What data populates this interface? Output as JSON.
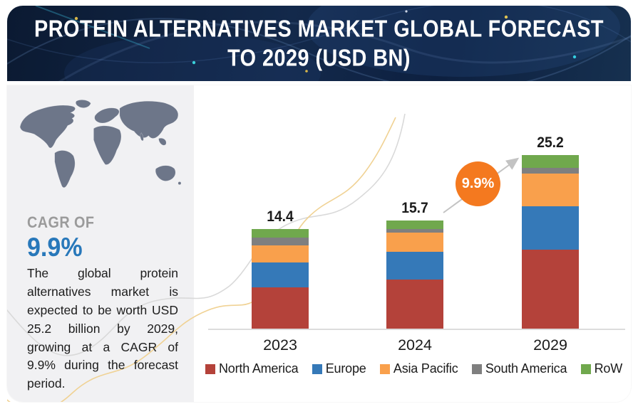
{
  "header": {
    "title_line1": "PROTEIN ALTERNATIVES MARKET GLOBAL FORECAST",
    "title_line2": "TO 2029 (USD BN)"
  },
  "sidebar": {
    "cagr_label": "CAGR OF",
    "cagr_value": "9.9%",
    "description": "The global protein alternatives market is expected to be worth USD 25.2 billion by 2029, growing at a CAGR of 9.9% during the forecast period."
  },
  "chart": {
    "growth_badge_label": "9.9%",
    "badge_color": "#f4791f",
    "arrow_color": "#c3c3c3",
    "axis_color": "#dcdcdc"
  },
  "chart_data": {
    "type": "bar",
    "stacked": true,
    "title": "Protein Alternatives Market Global Forecast to 2029 (USD BN)",
    "categories": [
      "2023",
      "2024",
      "2029"
    ],
    "totals": [
      14.4,
      15.7,
      25.2
    ],
    "series": [
      {
        "name": "North America",
        "color": "#b4423a",
        "values": [
          6.0,
          7.1,
          11.5
        ]
      },
      {
        "name": "Europe",
        "color": "#3579b8",
        "values": [
          3.6,
          4.0,
          6.2
        ]
      },
      {
        "name": "Asia Pacific",
        "color": "#f9a04c",
        "values": [
          2.5,
          2.8,
          4.8
        ]
      },
      {
        "name": "South America",
        "color": "#7f7f7f",
        "values": [
          1.1,
          0.5,
          0.8
        ]
      },
      {
        "name": "RoW",
        "color": "#70a84d",
        "values": [
          1.2,
          1.3,
          1.9
        ]
      }
    ],
    "annotation": {
      "label": "9.9%"
    },
    "xlabel": "",
    "ylabel": "",
    "grid": false,
    "legend_position": "bottom"
  }
}
